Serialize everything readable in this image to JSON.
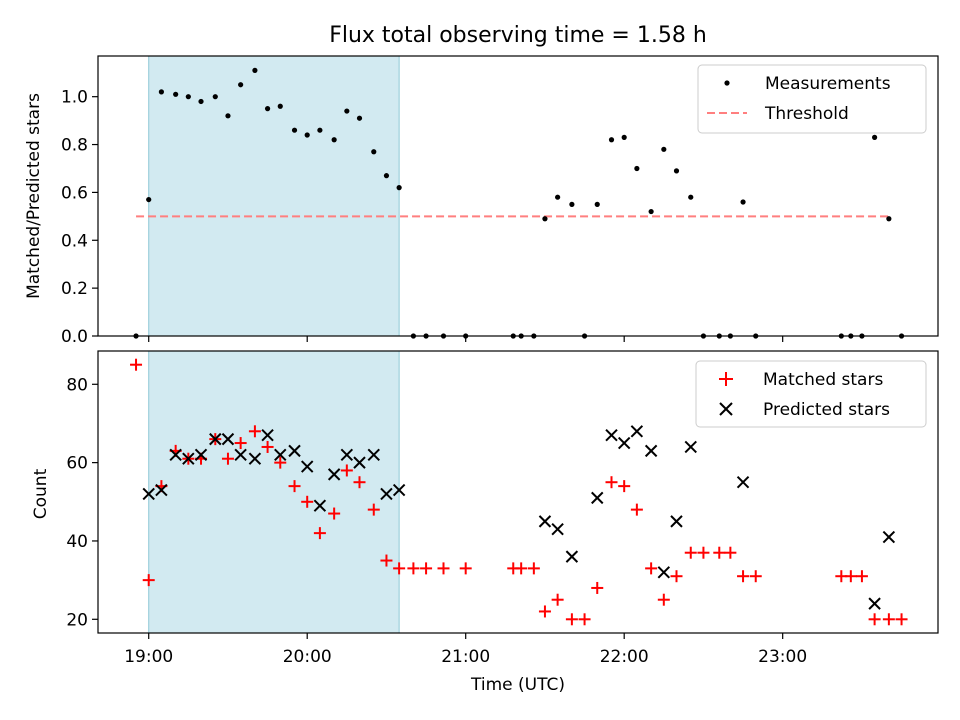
{
  "chart_data": [
    {
      "type": "scatter",
      "panel": "top",
      "title": "Flux total observing time = 1.58 h",
      "xlabel": "",
      "ylabel": "Matched/Predicted stars",
      "xlim": [
        18.68,
        23.98
      ],
      "ylim": [
        0.0,
        1.17
      ],
      "yticks": [
        0.0,
        0.2,
        0.4,
        0.6,
        0.8,
        1.0
      ],
      "ytick_labels": [
        "0.0",
        "0.2",
        "0.4",
        "0.6",
        "0.8",
        "1.0"
      ],
      "xticks": [
        19,
        20,
        21,
        22,
        23
      ],
      "shaded_interval": [
        19.0,
        20.58
      ],
      "shade_color": "#add8e6",
      "legend": {
        "placement": "upper right",
        "entries": [
          "Measurements",
          "Threshold"
        ]
      },
      "series": [
        {
          "name": "Measurements",
          "color": "#000000",
          "marker": "dot",
          "points": [
            [
              18.92,
              0.0
            ],
            [
              19.0,
              0.57
            ],
            [
              19.08,
              1.02
            ],
            [
              19.17,
              1.01
            ],
            [
              19.25,
              1.0
            ],
            [
              19.33,
              0.98
            ],
            [
              19.42,
              1.0
            ],
            [
              19.5,
              0.92
            ],
            [
              19.58,
              1.05
            ],
            [
              19.67,
              1.11
            ],
            [
              19.75,
              0.95
            ],
            [
              19.83,
              0.96
            ],
            [
              19.92,
              0.86
            ],
            [
              20.0,
              0.84
            ],
            [
              20.08,
              0.86
            ],
            [
              20.17,
              0.82
            ],
            [
              20.25,
              0.94
            ],
            [
              20.33,
              0.91
            ],
            [
              20.42,
              0.77
            ],
            [
              20.5,
              0.67
            ],
            [
              20.58,
              0.62
            ],
            [
              20.67,
              0.0
            ],
            [
              20.75,
              0.0
            ],
            [
              20.86,
              0.0
            ],
            [
              21.0,
              0.0
            ],
            [
              21.3,
              0.0
            ],
            [
              21.35,
              0.0
            ],
            [
              21.43,
              0.0
            ],
            [
              21.5,
              0.49
            ],
            [
              21.58,
              0.58
            ],
            [
              21.67,
              0.55
            ],
            [
              21.75,
              0.0
            ],
            [
              21.83,
              0.55
            ],
            [
              21.92,
              0.82
            ],
            [
              22.0,
              0.83
            ],
            [
              22.08,
              0.7
            ],
            [
              22.17,
              0.52
            ],
            [
              22.25,
              0.78
            ],
            [
              22.33,
              0.69
            ],
            [
              22.42,
              0.58
            ],
            [
              22.5,
              0.0
            ],
            [
              22.6,
              0.0
            ],
            [
              22.67,
              0.0
            ],
            [
              22.75,
              0.56
            ],
            [
              22.83,
              0.0
            ],
            [
              23.37,
              0.0
            ],
            [
              23.43,
              0.0
            ],
            [
              23.5,
              0.0
            ],
            [
              23.58,
              0.83
            ],
            [
              23.67,
              0.49
            ],
            [
              23.75,
              0.0
            ]
          ]
        },
        {
          "name": "Threshold",
          "color": "#ff7f7f",
          "line": "dashed",
          "points": [
            [
              18.92,
              0.5
            ],
            [
              23.67,
              0.5
            ]
          ]
        }
      ]
    },
    {
      "type": "scatter",
      "panel": "bottom",
      "xlabel": "Time (UTC)",
      "ylabel": "Count",
      "xlim": [
        18.68,
        23.98
      ],
      "ylim": [
        16.5,
        88.5
      ],
      "yticks": [
        20,
        40,
        60,
        80
      ],
      "ytick_labels": [
        "20",
        "40",
        "60",
        "80"
      ],
      "xticks": [
        19,
        20,
        21,
        22,
        23
      ],
      "xtick_labels": [
        "19:00",
        "20:00",
        "21:00",
        "22:00",
        "23:00"
      ],
      "shaded_interval": [
        19.0,
        20.58
      ],
      "shade_color": "#add8e6",
      "legend": {
        "placement": "upper right",
        "entries": [
          "Matched stars",
          "Predicted stars"
        ]
      },
      "series": [
        {
          "name": "Matched stars",
          "color": "#ff0000",
          "marker": "plus",
          "points": [
            [
              18.92,
              85
            ],
            [
              19.0,
              30
            ],
            [
              19.08,
              54
            ],
            [
              19.17,
              63
            ],
            [
              19.25,
              61
            ],
            [
              19.33,
              61
            ],
            [
              19.42,
              66
            ],
            [
              19.5,
              61
            ],
            [
              19.58,
              65
            ],
            [
              19.67,
              68
            ],
            [
              19.75,
              64
            ],
            [
              19.83,
              60
            ],
            [
              19.92,
              54
            ],
            [
              20.0,
              50
            ],
            [
              20.08,
              42
            ],
            [
              20.17,
              47
            ],
            [
              20.25,
              58
            ],
            [
              20.33,
              55
            ],
            [
              20.42,
              48
            ],
            [
              20.5,
              35
            ],
            [
              20.58,
              33
            ],
            [
              20.67,
              33
            ],
            [
              20.75,
              33
            ],
            [
              20.86,
              33
            ],
            [
              21.0,
              33
            ],
            [
              21.3,
              33
            ],
            [
              21.35,
              33
            ],
            [
              21.43,
              33
            ],
            [
              21.5,
              22
            ],
            [
              21.58,
              25
            ],
            [
              21.67,
              20
            ],
            [
              21.75,
              20
            ],
            [
              21.83,
              28
            ],
            [
              21.92,
              55
            ],
            [
              22.0,
              54
            ],
            [
              22.08,
              48
            ],
            [
              22.17,
              33
            ],
            [
              22.25,
              25
            ],
            [
              22.33,
              31
            ],
            [
              22.42,
              37
            ],
            [
              22.5,
              37
            ],
            [
              22.6,
              37
            ],
            [
              22.67,
              37
            ],
            [
              22.75,
              31
            ],
            [
              22.83,
              31
            ],
            [
              23.37,
              31
            ],
            [
              23.43,
              31
            ],
            [
              23.5,
              31
            ],
            [
              23.58,
              20
            ],
            [
              23.67,
              20
            ],
            [
              23.75,
              20
            ]
          ]
        },
        {
          "name": "Predicted stars",
          "color": "#000000",
          "marker": "x",
          "points": [
            [
              19.0,
              52
            ],
            [
              19.08,
              53
            ],
            [
              19.17,
              62
            ],
            [
              19.25,
              61
            ],
            [
              19.33,
              62
            ],
            [
              19.42,
              66
            ],
            [
              19.5,
              66
            ],
            [
              19.58,
              62
            ],
            [
              19.67,
              61
            ],
            [
              19.75,
              67
            ],
            [
              19.83,
              62
            ],
            [
              19.92,
              63
            ],
            [
              20.0,
              59
            ],
            [
              20.08,
              49
            ],
            [
              20.17,
              57
            ],
            [
              20.25,
              62
            ],
            [
              20.33,
              60
            ],
            [
              20.42,
              62
            ],
            [
              20.5,
              52
            ],
            [
              20.58,
              53
            ],
            [
              21.5,
              45
            ],
            [
              21.58,
              43
            ],
            [
              21.67,
              36
            ],
            [
              21.83,
              51
            ],
            [
              21.92,
              67
            ],
            [
              22.0,
              65
            ],
            [
              22.08,
              68
            ],
            [
              22.17,
              63
            ],
            [
              22.25,
              32
            ],
            [
              22.33,
              45
            ],
            [
              22.42,
              64
            ],
            [
              22.75,
              55
            ],
            [
              23.58,
              24
            ],
            [
              23.67,
              41
            ]
          ]
        }
      ]
    }
  ]
}
